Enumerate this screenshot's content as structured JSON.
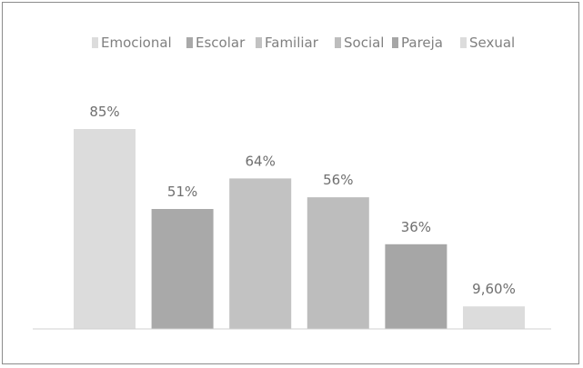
{
  "chart_data": {
    "type": "bar",
    "categories": [
      "Emocional",
      "Escolar",
      "Familiar",
      "Social",
      "Pareja",
      "Sexual"
    ],
    "values": [
      85,
      51,
      64,
      56,
      36,
      9.6
    ],
    "value_labels": [
      "85%",
      "51%",
      "64%",
      "56%",
      "36%",
      "9,60%"
    ],
    "colors": [
      "#dcdcdc",
      "#a9a9a9",
      "#c2c2c2",
      "#bdbdbd",
      "#a6a6a6",
      "#dcdcdc"
    ],
    "ylim": [
      0,
      85
    ],
    "grid": false,
    "legend_position": "top",
    "title": "",
    "xlabel": "",
    "ylabel": ""
  }
}
